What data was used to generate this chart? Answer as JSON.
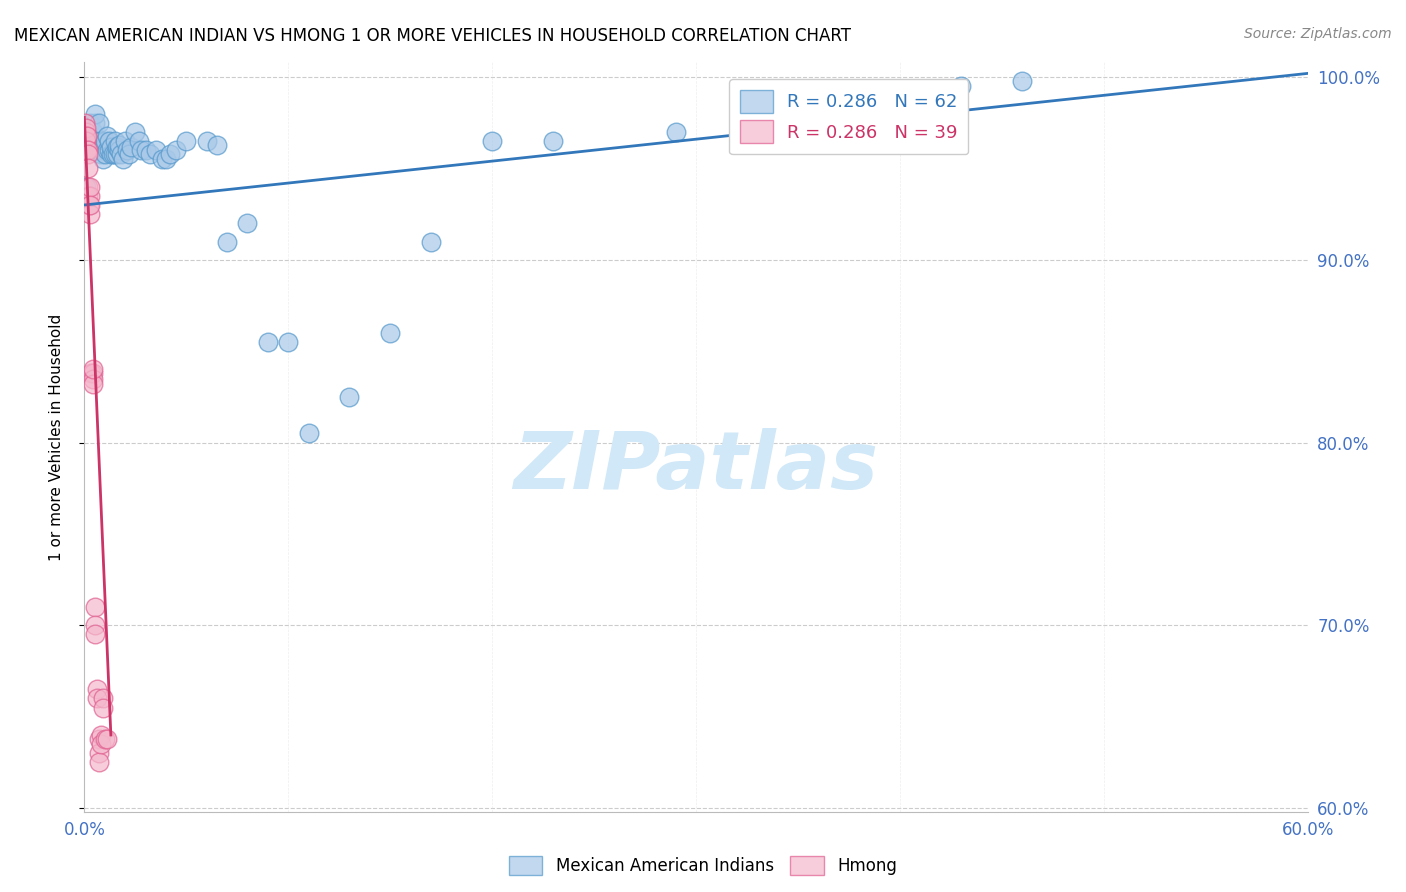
{
  "title": "MEXICAN AMERICAN INDIAN VS HMONG 1 OR MORE VEHICLES IN HOUSEHOLD CORRELATION CHART",
  "source": "Source: ZipAtlas.com",
  "ylabel": "1 or more Vehicles in Household",
  "xlim": [
    0.0,
    0.6
  ],
  "ylim": [
    0.598,
    1.008
  ],
  "yticks": [
    0.6,
    0.7,
    0.8,
    0.9,
    1.0
  ],
  "ytick_labels": [
    "60.0%",
    "70.0%",
    "80.0%",
    "90.0%",
    "100.0%"
  ],
  "xticks": [
    0.0,
    0.1,
    0.2,
    0.3,
    0.4,
    0.5,
    0.6
  ],
  "xtick_labels": [
    "0.0%",
    "",
    "",
    "",
    "",
    "",
    "60.0%"
  ],
  "blue_color": "#a8c8e8",
  "pink_color": "#f4b8cc",
  "blue_edge_color": "#5599cc",
  "pink_edge_color": "#e06090",
  "blue_line_color": "#3377bb",
  "pink_line_color": "#cc3366",
  "tick_color": "#4472C4",
  "watermark": "ZIPatlas",
  "watermark_color": "#d0e8f8",
  "legend_r_blue": "R = 0.286",
  "legend_n_blue": "N = 62",
  "legend_r_pink": "R = 0.286",
  "legend_n_pink": "N = 39",
  "blue_x": [
    0.001,
    0.002,
    0.003,
    0.004,
    0.005,
    0.005,
    0.006,
    0.007,
    0.007,
    0.008,
    0.008,
    0.009,
    0.009,
    0.01,
    0.01,
    0.01,
    0.011,
    0.011,
    0.012,
    0.012,
    0.013,
    0.013,
    0.014,
    0.015,
    0.015,
    0.016,
    0.016,
    0.017,
    0.017,
    0.018,
    0.019,
    0.02,
    0.021,
    0.022,
    0.023,
    0.025,
    0.027,
    0.028,
    0.03,
    0.032,
    0.035,
    0.038,
    0.04,
    0.042,
    0.045,
    0.05,
    0.06,
    0.065,
    0.07,
    0.08,
    0.09,
    0.1,
    0.11,
    0.13,
    0.15,
    0.17,
    0.2,
    0.23,
    0.29,
    0.35,
    0.43,
    0.46
  ],
  "blue_y": [
    0.94,
    0.96,
    0.975,
    0.97,
    0.975,
    0.98,
    0.965,
    0.975,
    0.96,
    0.965,
    0.958,
    0.96,
    0.955,
    0.963,
    0.958,
    0.965,
    0.96,
    0.968,
    0.96,
    0.965,
    0.958,
    0.962,
    0.958,
    0.965,
    0.958,
    0.958,
    0.962,
    0.96,
    0.963,
    0.958,
    0.955,
    0.965,
    0.96,
    0.958,
    0.962,
    0.97,
    0.965,
    0.96,
    0.96,
    0.958,
    0.96,
    0.955,
    0.955,
    0.958,
    0.96,
    0.965,
    0.965,
    0.963,
    0.91,
    0.92,
    0.855,
    0.855,
    0.805,
    0.825,
    0.86,
    0.91,
    0.965,
    0.965,
    0.97,
    0.975,
    0.995,
    0.998
  ],
  "pink_x": [
    0.0005,
    0.0005,
    0.0008,
    0.001,
    0.001,
    0.001,
    0.001,
    0.001,
    0.0015,
    0.0015,
    0.002,
    0.002,
    0.002,
    0.002,
    0.002,
    0.0025,
    0.003,
    0.003,
    0.003,
    0.003,
    0.0035,
    0.004,
    0.004,
    0.004,
    0.004,
    0.005,
    0.005,
    0.005,
    0.006,
    0.006,
    0.007,
    0.007,
    0.007,
    0.008,
    0.008,
    0.009,
    0.009,
    0.01,
    0.011
  ],
  "pink_y": [
    0.965,
    0.975,
    0.97,
    0.96,
    0.968,
    0.972,
    0.96,
    0.965,
    0.96,
    0.968,
    0.96,
    0.958,
    0.95,
    0.94,
    0.935,
    0.93,
    0.925,
    0.935,
    0.94,
    0.93,
    0.838,
    0.838,
    0.835,
    0.832,
    0.84,
    0.71,
    0.7,
    0.695,
    0.665,
    0.66,
    0.638,
    0.63,
    0.625,
    0.64,
    0.635,
    0.66,
    0.655,
    0.638,
    0.638
  ],
  "blue_trend_x": [
    0.0,
    0.6
  ],
  "blue_trend_y": [
    0.93,
    1.002
  ],
  "pink_trend_x": [
    0.0,
    0.013
  ],
  "pink_trend_y": [
    0.978,
    0.64
  ]
}
